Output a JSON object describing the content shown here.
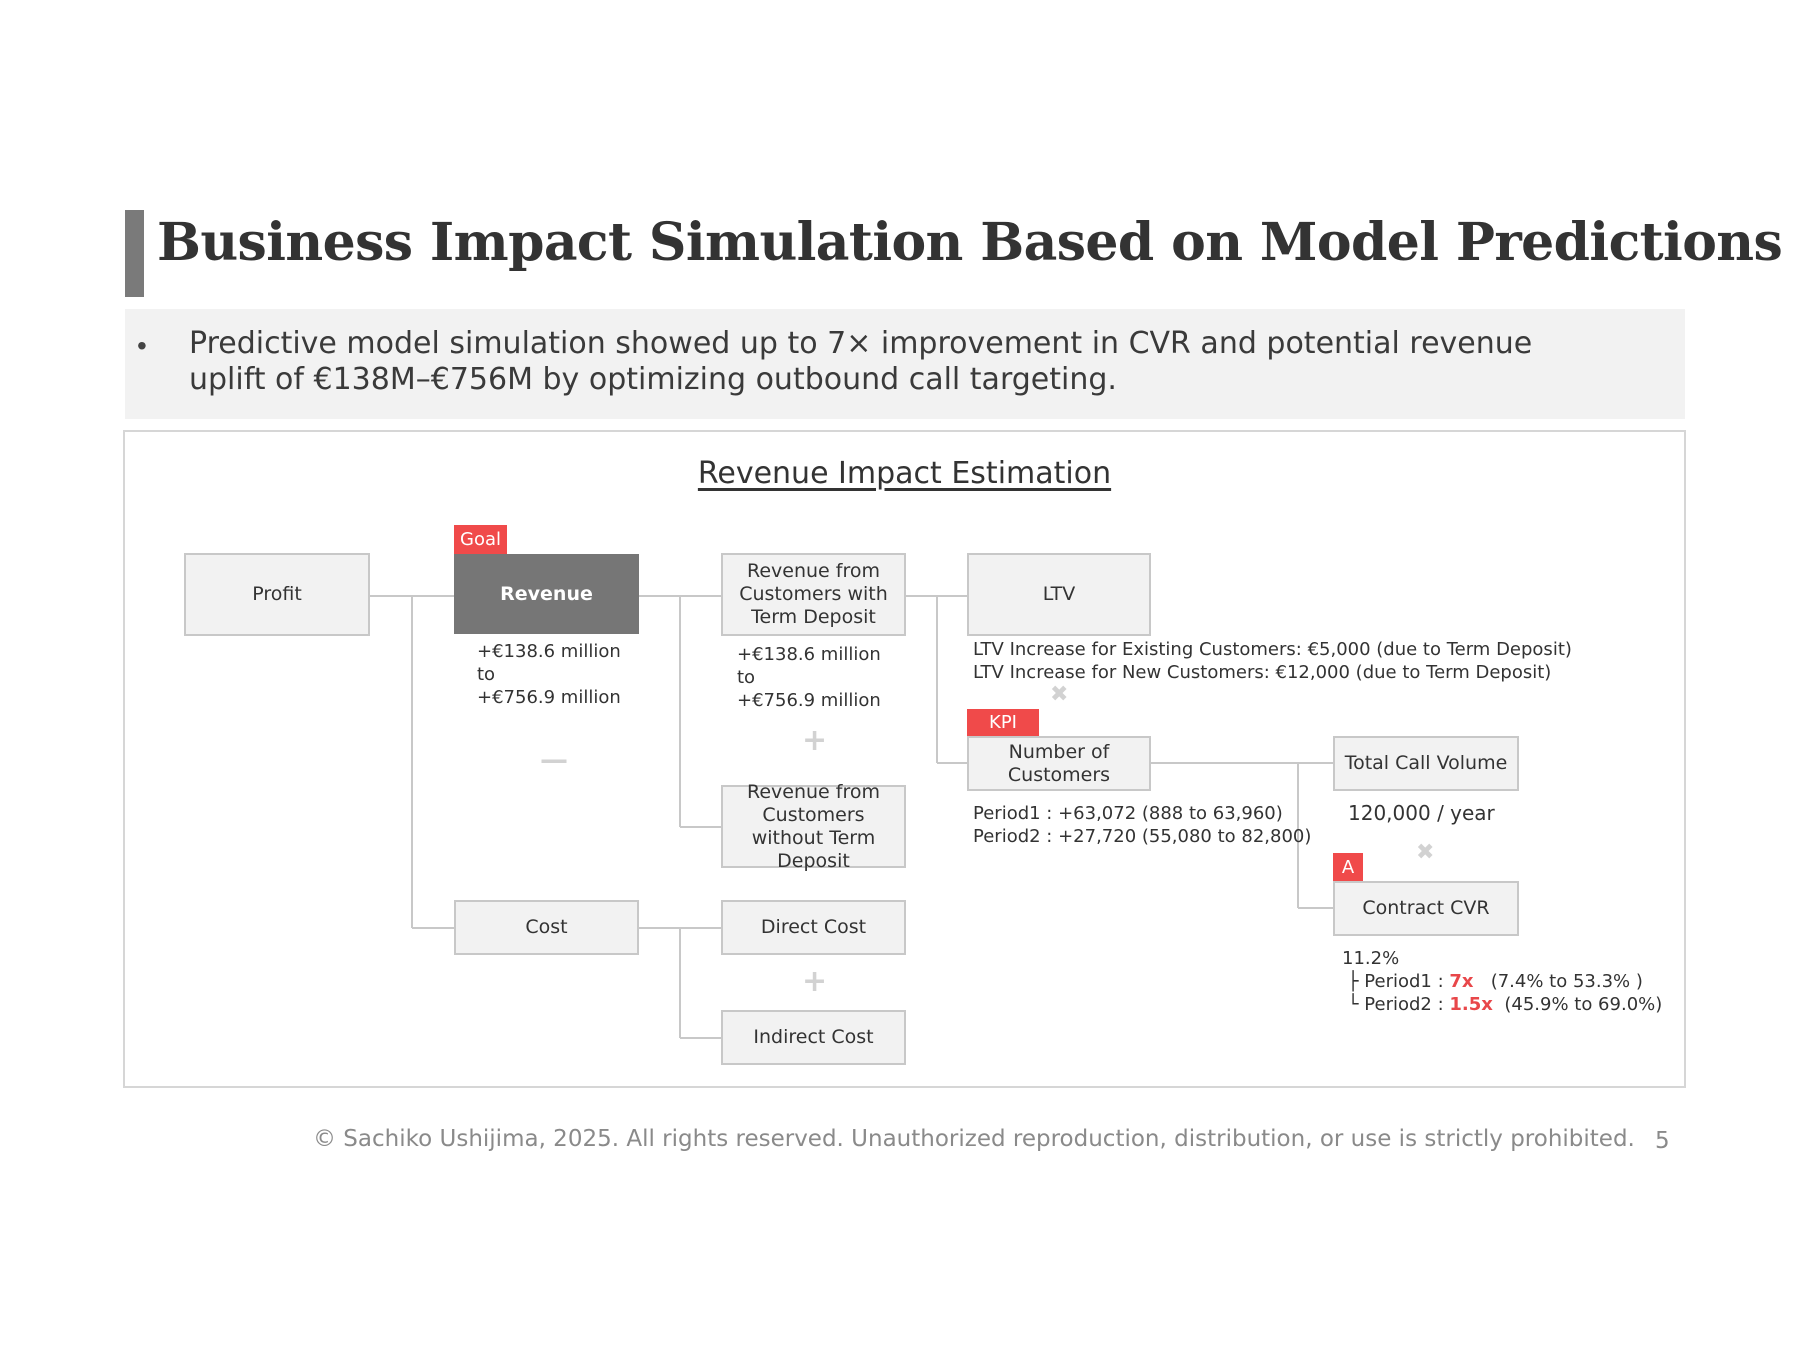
{
  "header": {
    "title": "Business Impact Simulation Based on Model Predictions"
  },
  "summary": {
    "bullet": "•",
    "text": "Predictive model simulation showed up to 7× improvement in CVR and potential revenue uplift of €138M–€756M by optimizing outbound call targeting."
  },
  "diagram": {
    "title": "Revenue Impact Estimation",
    "tags": {
      "goal": "Goal",
      "kpi": "KPI",
      "a": "A"
    },
    "nodes": {
      "profit": "Profit",
      "revenue": "Revenue",
      "cost": "Cost",
      "rev_with_deposit": "Revenue from Customers with Term Deposit",
      "rev_without_deposit": "Revenue from Customers without Term Deposit",
      "direct_cost": "Direct Cost",
      "indirect_cost": "Indirect Cost",
      "ltv": "LTV",
      "num_customers": "Number of Customers",
      "total_call_volume": "Total Call Volume",
      "contract_cvr": "Contract CVR"
    },
    "operators": {
      "minus": "—",
      "plus1": "+",
      "plus2": "+",
      "times1": "✖",
      "times2": "✖"
    },
    "notes": {
      "revenue": {
        "line1": "+€138.6 million",
        "line2": "to",
        "line3": "+€756.9 million"
      },
      "rev_with_deposit": {
        "line1": "+€138.6 million",
        "line2": "to",
        "line3": "+€756.9 million"
      },
      "ltv": {
        "line1": "LTV Increase for Existing Customers: €5,000 (due to Term Deposit)",
        "line2": "LTV Increase for New Customers: €12,000 (due to Term Deposit)"
      },
      "num_customers": {
        "line1": "Period1 : +63,072 (888 to 63,960)",
        "line2": "Period2 : +27,720 (55,080 to 82,800)"
      },
      "call_volume": "120,000 / year",
      "cvr": {
        "base": "11.2%",
        "p1_prefix": "├ Period1 : ",
        "p1_mult": "7x",
        "p1_range": "(7.4% to 53.3% )",
        "p2_prefix": "└ Period2 : ",
        "p2_mult": "1.5x",
        "p2_range": "(45.9% to 69.0%)"
      }
    }
  },
  "colors": {
    "accent_red": "#f04a4a",
    "dark_box": "#767676",
    "box_fill": "#f2f2f2"
  },
  "footer": {
    "copyright": "© Sachiko Ushijima, 2025. All rights reserved. Unauthorized reproduction, distribution, or use is strictly prohibited.",
    "page_number": "5"
  }
}
